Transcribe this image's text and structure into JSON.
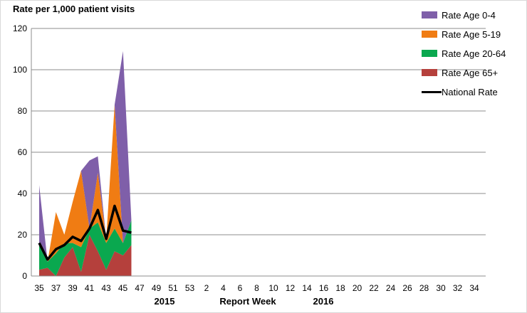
{
  "chart_data": {
    "type": "area",
    "title": "",
    "ylabel": "Rate per 1,000 patient visits",
    "xlabel": "Report Week",
    "year_labels": [
      "2015",
      "2016"
    ],
    "ylim": [
      0,
      120
    ],
    "yticks": [
      0,
      20,
      40,
      60,
      80,
      100,
      120
    ],
    "grid": "horizontal",
    "legend_position": "top-right",
    "x_tick_labels": [
      "35",
      "37",
      "39",
      "41",
      "43",
      "45",
      "47",
      "49",
      "51",
      "53",
      "2",
      "4",
      "6",
      "8",
      "10",
      "12",
      "14",
      "16",
      "18",
      "20",
      "22",
      "24",
      "26",
      "28",
      "30",
      "32",
      "34"
    ],
    "weeks": [
      "35",
      "36",
      "37",
      "38",
      "39",
      "40",
      "41",
      "42",
      "43",
      "44",
      "45",
      "46"
    ],
    "series": [
      {
        "name": "Rate Age 65+",
        "color": "#b5403c",
        "stack": true,
        "values": [
          3,
          4,
          0,
          9,
          14,
          2,
          20,
          12,
          3,
          12,
          10,
          15
        ]
      },
      {
        "name": "Rate Age 20-64",
        "color": "#0aa84f",
        "stack": true,
        "values": [
          12,
          3,
          11,
          7,
          2,
          12,
          3,
          14,
          13,
          11,
          6,
          12
        ]
      },
      {
        "name": "Rate Age 5-19",
        "color": "#f07c13",
        "stack": true,
        "values": [
          0,
          0,
          20,
          4,
          20,
          37,
          0,
          24,
          2,
          60,
          0,
          0
        ]
      },
      {
        "name": "Rate Age 0-4",
        "color": "#7f5fa9",
        "stack": true,
        "values": [
          29,
          0,
          0,
          0,
          0,
          0,
          33,
          8,
          0,
          0,
          93,
          0
        ]
      },
      {
        "name": "National Rate",
        "color": "#000000",
        "type": "line",
        "values": [
          16,
          8,
          13,
          15,
          19,
          17,
          23,
          32,
          18,
          34,
          22,
          21
        ]
      }
    ]
  }
}
